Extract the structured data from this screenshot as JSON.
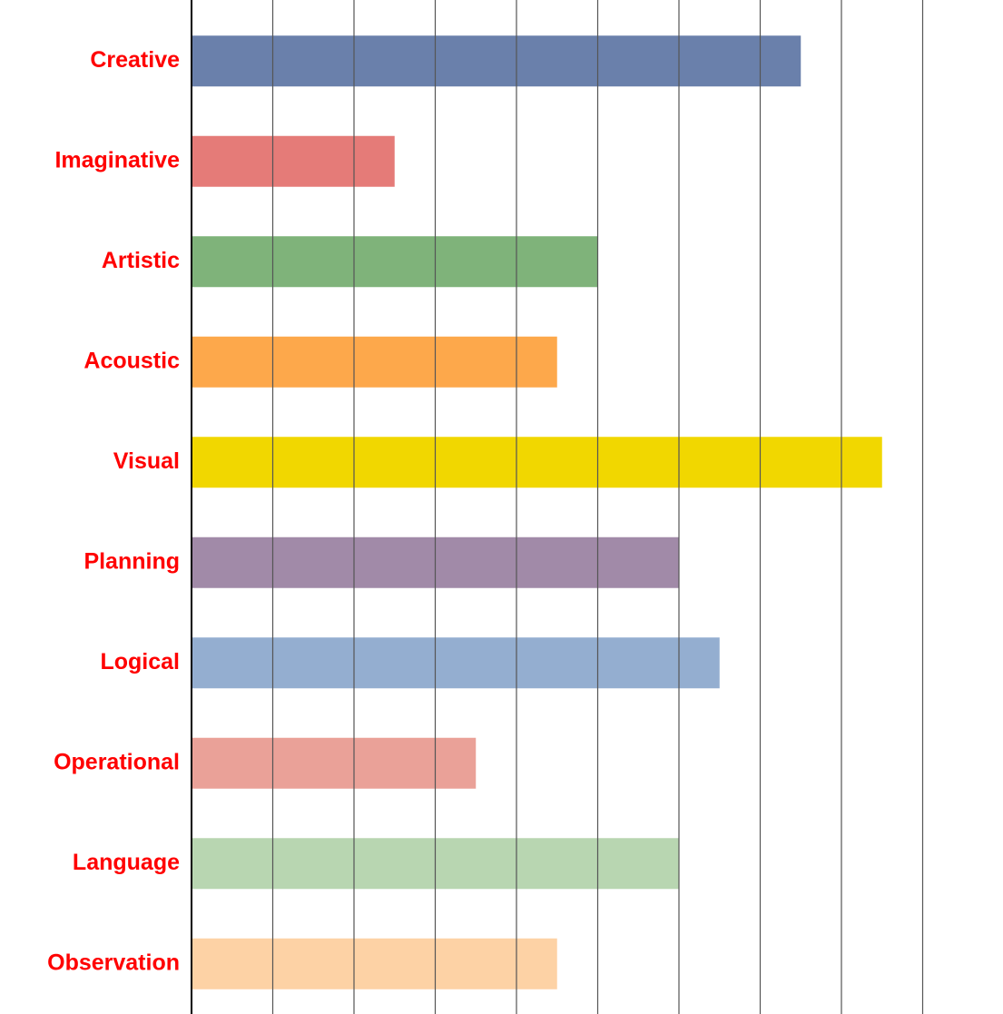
{
  "chart_data": {
    "type": "bar",
    "orientation": "horizontal",
    "categories": [
      "Creative",
      "Imaginative",
      "Artistic",
      "Acoustic",
      "Visual",
      "Planning",
      "Logical",
      "Operational",
      "Language",
      "Observation"
    ],
    "values": [
      7.5,
      2.5,
      5,
      4.5,
      8.5,
      6,
      6.5,
      3.5,
      6,
      4.5
    ],
    "colors": [
      "#6a80ab",
      "#e57b78",
      "#7fb37a",
      "#fda84b",
      "#f1d700",
      "#a18aa8",
      "#94aed0",
      "#eaa198",
      "#b8d6b1",
      "#fdd2a5"
    ],
    "xlim": [
      0,
      10
    ],
    "xticks": [
      0,
      1,
      2,
      3,
      4,
      5,
      6,
      7,
      8,
      9,
      10
    ],
    "grid": true
  }
}
